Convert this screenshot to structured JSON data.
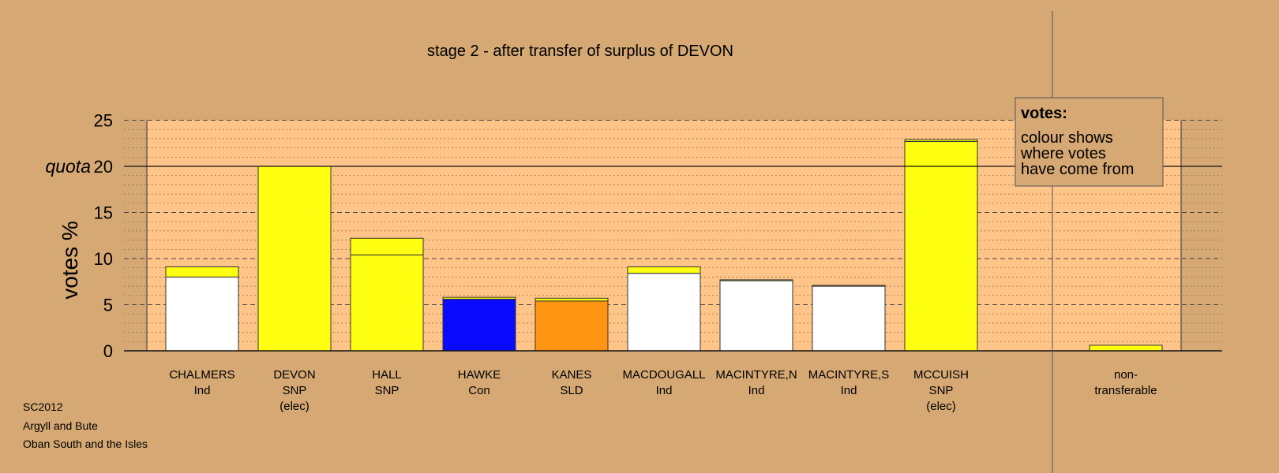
{
  "chart_data": {
    "type": "bar",
    "title": "stage 2 - after transfer of surplus of DEVON",
    "ylabel": "votes %",
    "quota_label": "quota",
    "quota": 20,
    "ylim": [
      0,
      25
    ],
    "yticks": [
      "0",
      "5",
      "10",
      "15",
      "20",
      "25"
    ],
    "grid": true,
    "legend": {
      "title": "votes:",
      "lines": [
        "colour shows",
        "where votes",
        "have come from"
      ],
      "placement": "top-right"
    },
    "categories": [
      {
        "name": "CHALMERS",
        "party": "Ind",
        "note": ""
      },
      {
        "name": "DEVON",
        "party": "SNP",
        "note": "(elec)"
      },
      {
        "name": "HALL",
        "party": "SNP",
        "note": ""
      },
      {
        "name": "HAWKE",
        "party": "Con",
        "note": ""
      },
      {
        "name": "KANES",
        "party": "SLD",
        "note": ""
      },
      {
        "name": "MACDOUGALL",
        "party": "Ind",
        "note": ""
      },
      {
        "name": "MACINTYRE,N",
        "party": "Ind",
        "note": ""
      },
      {
        "name": "MACINTYRE,S",
        "party": "Ind",
        "note": ""
      },
      {
        "name": "MCCUISH",
        "party": "SNP",
        "note": "(elec)"
      }
    ],
    "nontransferable_label": [
      "non-",
      "transferable"
    ],
    "series_colors": {
      "Ind": "#ffffff",
      "SNP": "#ffff11",
      "Con": "#0a0aff",
      "SLD": "#ff9511",
      "transfer": "#ffff11"
    },
    "first_preference": [
      8.0,
      20.0,
      10.4,
      5.6,
      5.4,
      8.4,
      7.6,
      7.0,
      22.7
    ],
    "transfer_from_devon": [
      1.1,
      0.0,
      1.8,
      0.2,
      0.3,
      0.7,
      0.1,
      0.1,
      0.2
    ],
    "nontransferable": 0.6
  },
  "footer": {
    "line1": "SC2012",
    "line2": "Argyll and Bute",
    "line3": "Oban South and the Isles"
  }
}
